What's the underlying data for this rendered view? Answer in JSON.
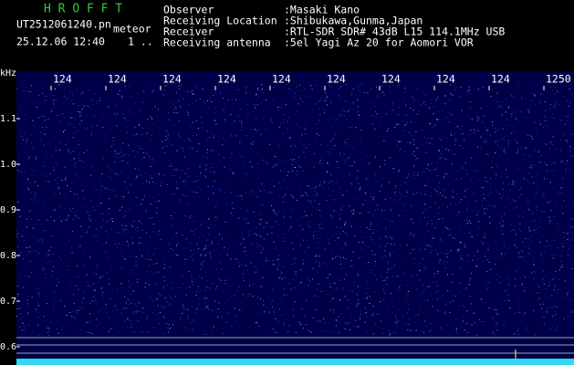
{
  "app": {
    "title": "H R O F F T",
    "file": "UT2512061240.pn",
    "mode": "meteor",
    "datetime": "25.12.06 12:40",
    "counter": "1 .."
  },
  "info": [
    {
      "label": "Observer",
      "value": ":Masaki Kano"
    },
    {
      "label": "Receiving Location",
      "value": ":Shibukawa,Gunma,Japan"
    },
    {
      "label": "Receiver",
      "value": ":RTL-SDR SDR# 43dB L15 114.1MHz USB"
    },
    {
      "label": "Receiving antenna",
      "value": ":5el Yagi Az 20 for Aomori VOR"
    }
  ],
  "freq_axis": {
    "labels": [
      "124",
      "124",
      "124",
      "124",
      "124",
      "124",
      "124",
      "124",
      "124",
      "1250"
    ]
  },
  "khz_axis": {
    "unit": "kHz",
    "labels": [
      "1.1",
      "1.0",
      "0.9",
      "0.8",
      "0.7",
      "0.6"
    ]
  }
}
